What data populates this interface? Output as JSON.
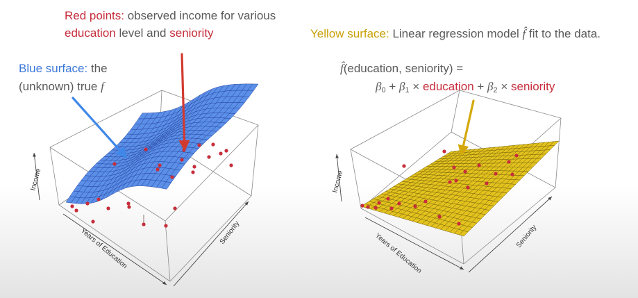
{
  "annotations": {
    "red_points": {
      "title": "Red points:",
      "line1_rest": " observed income for various",
      "word_education": "education",
      "word_level_and": " level and ",
      "word_seniority": "seniority"
    },
    "blue_surface": {
      "title": "Blue surface:",
      "line1_rest": " the",
      "line2": "(unknown) true ",
      "f": "f"
    },
    "yellow_surface": {
      "title": "Yellow surface:",
      "rest": " Linear regression model ",
      "fhat": "f̂",
      "tail": " fit to the data."
    },
    "formula": {
      "fhat": "f̂",
      "lhs": "(education, seniority) =",
      "beta0": "β",
      "sub0": "0",
      "plus1": " + ",
      "beta1": "β",
      "sub1": "1",
      "times_education": " × ",
      "education": "education",
      "plus2": " + ",
      "beta2": "β",
      "sub2": "2",
      "times_seniority": " × ",
      "seniority": "seniority"
    }
  },
  "plots": {
    "left": {
      "ylabel": "Income",
      "xlabel": "Years of Education",
      "zlabel": "Seniority",
      "surface_color": "#5b8fe8"
    },
    "right": {
      "ylabel": "Income",
      "xlabel": "Years of Education",
      "zlabel": "Seniority",
      "surface_color": "#e3c21e"
    }
  },
  "colors": {
    "red": "#c62d3b",
    "blue": "#3a78d8",
    "gold": "#c9a10a",
    "arrow_red": "#d23a30",
    "arrow_blue": "#3f88e8",
    "arrow_gold": "#d4a80c"
  }
}
